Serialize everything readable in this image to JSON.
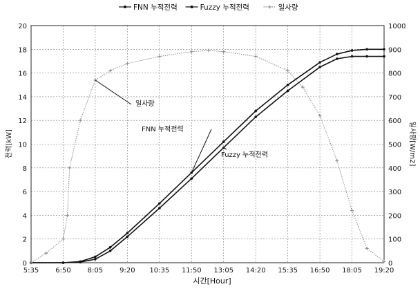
{
  "chart_data": {
    "type": "line",
    "xlabel": "시간[Hour]",
    "ylabel_left": "전력[kW]",
    "ylabel_right": "일사량[W/m2]",
    "x_tick_labels": [
      "5:35",
      "6:50",
      "8:05",
      "9:20",
      "10:35",
      "11:50",
      "13:05",
      "14:20",
      "15:35",
      "16:50",
      "18:05",
      "19:20"
    ],
    "ylim_left": [
      0,
      20
    ],
    "yticks_left": [
      0,
      2,
      4,
      6,
      8,
      10,
      12,
      14,
      16,
      18,
      20
    ],
    "ylim_right": [
      0,
      1000
    ],
    "yticks_right": [
      0,
      100,
      200,
      300,
      400,
      500,
      600,
      700,
      800,
      900,
      1000
    ],
    "grid": true,
    "legend_position": "top-center",
    "series": [
      {
        "name": "FNN 누적전력",
        "axis": "left",
        "color": "#111111",
        "x": [
          "5:35",
          "6:50",
          "7:30",
          "8:05",
          "8:40",
          "9:20",
          "10:35",
          "11:50",
          "13:05",
          "14:20",
          "15:35",
          "16:50",
          "17:30",
          "18:05",
          "18:40",
          "19:20"
        ],
        "values": [
          0,
          0,
          0.1,
          0.5,
          1.3,
          2.5,
          5.0,
          7.6,
          10.2,
          12.8,
          15.0,
          16.9,
          17.6,
          17.9,
          18.0,
          18.0
        ]
      },
      {
        "name": "Fuzzy 누적전력",
        "axis": "left",
        "color": "#111111",
        "x": [
          "5:35",
          "6:50",
          "7:30",
          "8:05",
          "8:40",
          "9:20",
          "10:35",
          "11:50",
          "13:05",
          "14:20",
          "15:35",
          "16:50",
          "17:30",
          "18:05",
          "18:40",
          "19:20"
        ],
        "values": [
          0,
          0,
          0.05,
          0.3,
          1.0,
          2.2,
          4.6,
          7.1,
          9.7,
          12.3,
          14.5,
          16.5,
          17.2,
          17.4,
          17.4,
          17.4
        ]
      },
      {
        "name": "일사량",
        "axis": "right",
        "color": "#888888",
        "x": [
          "5:35",
          "6:10",
          "6:50",
          "7:00",
          "7:05",
          "7:30",
          "8:05",
          "8:40",
          "9:20",
          "10:35",
          "11:50",
          "12:30",
          "13:05",
          "14:20",
          "15:35",
          "16:10",
          "16:50",
          "17:30",
          "18:05",
          "18:40",
          "19:20"
        ],
        "values": [
          0,
          40,
          100,
          200,
          400,
          600,
          770,
          810,
          840,
          870,
          890,
          895,
          890,
          870,
          810,
          740,
          620,
          430,
          220,
          60,
          5
        ]
      }
    ],
    "annotations": [
      {
        "text": "일사량",
        "target": "일사량"
      },
      {
        "text": "FNN 누적전력",
        "target": "FNN 누적전력"
      },
      {
        "text": "Fuzzy 누적전력",
        "target": "Fuzzy 누적전력"
      }
    ]
  }
}
